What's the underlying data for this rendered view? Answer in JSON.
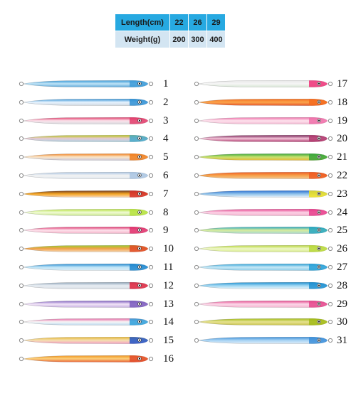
{
  "spec_table": {
    "header": [
      "Length(cm)",
      "22",
      "26",
      "29"
    ],
    "row": [
      "Weight(g)",
      "200",
      "300",
      "400"
    ]
  },
  "lures": [
    {
      "number": "1",
      "colors": [
        "#3d9bd8",
        "#bfe3f6",
        "#5aa7d9"
      ],
      "head": "#3d9bd8"
    },
    {
      "number": "2",
      "colors": [
        "#2f8fd4",
        "#e8f4ff",
        "#cfd8e0"
      ],
      "head": "#2f8fd4"
    },
    {
      "number": "3",
      "colors": [
        "#e23b6a",
        "#fbe1ea",
        "#d9dbe0"
      ],
      "head": "#e23b6a"
    },
    {
      "number": "4",
      "colors": [
        "#b8c61b",
        "#e7c8d6",
        "#a9d3df"
      ],
      "head": "#47a9c9"
    },
    {
      "number": "5",
      "colors": [
        "#f07f1f",
        "#fbe6c8",
        "#c9c7d9"
      ],
      "head": "#f07f1f"
    },
    {
      "number": "6",
      "colors": [
        "#a9c4e2",
        "#f4f4f4",
        "#dfe7ef"
      ],
      "head": "#a9c4e2"
    },
    {
      "number": "7",
      "colors": [
        "#6e3a21",
        "#f5a623",
        "#f7d6b8"
      ],
      "head": "#d6302e"
    },
    {
      "number": "8",
      "colors": [
        "#b5e23d",
        "#f1fbd7",
        "#c8e789"
      ],
      "head": "#b5e23d"
    },
    {
      "number": "9",
      "colors": [
        "#e02f6b",
        "#fde2ec",
        "#f3b3c9"
      ],
      "head": "#e02f6b"
    },
    {
      "number": "10",
      "colors": [
        "#9bcc2c",
        "#f2a04a",
        "#f6d9b5"
      ],
      "head": "#e04a26"
    },
    {
      "number": "11",
      "colors": [
        "#1c86cf",
        "#bfe4f7",
        "#d9ecf5"
      ],
      "head": "#1c86cf"
    },
    {
      "number": "12",
      "colors": [
        "#8ea4b8",
        "#e9eef3",
        "#d7dde4"
      ],
      "head": "#e0223c"
    },
    {
      "number": "13",
      "colors": [
        "#7a5bbd",
        "#f2e4f7",
        "#c7b2e2"
      ],
      "head": "#7a5bbd"
    },
    {
      "number": "14",
      "colors": [
        "#e56aa5",
        "#f7f7f7",
        "#bcd8ee"
      ],
      "head": "#2d9fda"
    },
    {
      "number": "15",
      "colors": [
        "#e7b52d",
        "#f4e0b2",
        "#f5a0c4"
      ],
      "head": "#1f55c8"
    },
    {
      "number": "16",
      "colors": [
        "#f0931f",
        "#fbd07c",
        "#e95c2f"
      ],
      "head": "#e24a2a"
    },
    {
      "number": "17",
      "colors": [
        "#e7e7e7",
        "#f5f5f5",
        "#d8e7d5"
      ],
      "head": "#ef2e75"
    },
    {
      "number": "18",
      "colors": [
        "#f46b1f",
        "#fba64b",
        "#e8552a"
      ],
      "head": "#f46b1f"
    },
    {
      "number": "19",
      "colors": [
        "#ef6ea9",
        "#fde4ee",
        "#f4b7d1"
      ],
      "head": "#ef6ea9"
    },
    {
      "number": "20",
      "colors": [
        "#7a1f55",
        "#f2c6d9",
        "#b2396f"
      ],
      "head": "#b2396f"
    },
    {
      "number": "21",
      "colors": [
        "#3aa43b",
        "#c6e26d",
        "#e5b83a"
      ],
      "head": "#3aa43b"
    },
    {
      "number": "22",
      "colors": [
        "#ef5a22",
        "#f7a24a",
        "#f2c690"
      ],
      "head": "#ef5a22"
    },
    {
      "number": "23",
      "colors": [
        "#2b6fd0",
        "#8fc2ea",
        "#e8f0f8"
      ],
      "head": "#f0e21d"
    },
    {
      "number": "24",
      "colors": [
        "#e83e8c",
        "#fbd3e6",
        "#f5b0cf"
      ],
      "head": "#e83e8c"
    },
    {
      "number": "25",
      "colors": [
        "#27a7c2",
        "#d8ec9b",
        "#a7d9cf"
      ],
      "head": "#27a7c2"
    },
    {
      "number": "26",
      "colors": [
        "#b9d83b",
        "#eef7c8",
        "#d9ec8a"
      ],
      "head": "#b9d83b"
    },
    {
      "number": "27",
      "colors": [
        "#28a0d7",
        "#c6e8f6",
        "#8ccbe8"
      ],
      "head": "#28a0d7"
    },
    {
      "number": "28",
      "colors": [
        "#1d8fd1",
        "#9dd6f2",
        "#e9f5fb"
      ],
      "head": "#1d8fd1"
    },
    {
      "number": "29",
      "colors": [
        "#e5468c",
        "#fbd7e8",
        "#f5b3d0"
      ],
      "head": "#e5468c"
    },
    {
      "number": "30",
      "colors": [
        "#a2bb19",
        "#e7e291",
        "#c7c34c"
      ],
      "head": "#a2bb19"
    },
    {
      "number": "31",
      "colors": [
        "#3c8fd9",
        "#a9d4f4",
        "#dcebf8"
      ],
      "head": "#3c8fd9"
    }
  ]
}
